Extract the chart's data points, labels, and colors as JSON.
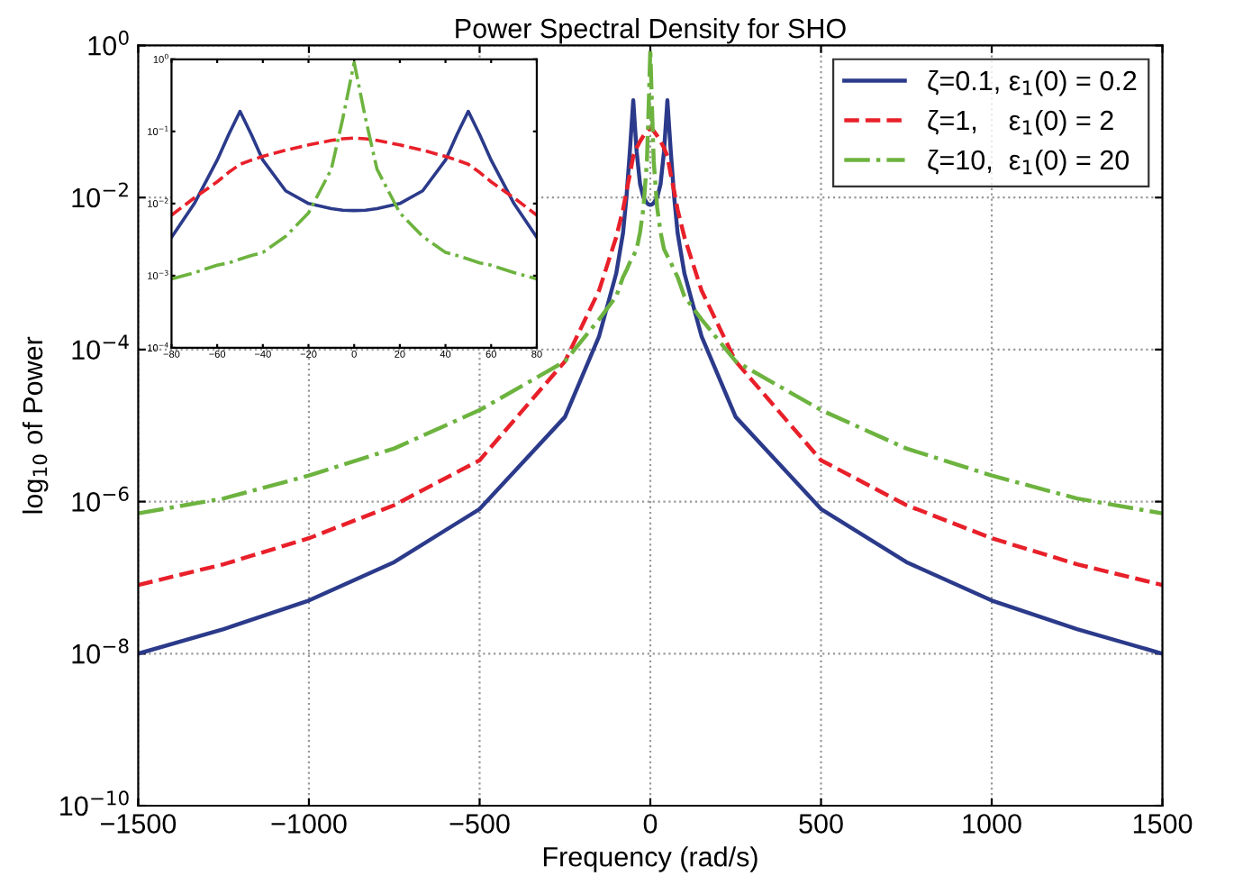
{
  "chart_data": [
    {
      "type": "line",
      "title": "Power Spectral Density for SHO",
      "xlabel": "Frequency (rad/s)",
      "ylabel": "log$_{10}$ of Power",
      "log": "y",
      "xlim": [
        -1500,
        1500
      ],
      "xticks": [
        {
          "value": -1500,
          "label": "−1500"
        },
        {
          "value": -1000,
          "label": "−1000"
        },
        {
          "value": -500,
          "label": "−500"
        },
        0,
        500,
        1000,
        1500
      ],
      "ylim": [
        1e-10,
        1
      ],
      "yticks": [
        {
          "value": 1e-10,
          "label": "10$^{−10}$"
        },
        {
          "value": 1e-08,
          "label": "10$^{−8}$"
        },
        {
          "value": 1e-06,
          "label": "10$^{−6}$"
        },
        {
          "value": 0.0001,
          "label": "10$^{−4}$"
        },
        {
          "value": 0.01,
          "label": "10$^{−2}$"
        },
        {
          "value": 1,
          "label": "10$^{0}$"
        }
      ],
      "grid": true,
      "legend": "top right",
      "x": [
        -1500,
        -1250,
        -1000,
        -750,
        -500,
        -250,
        -150,
        -100,
        -80,
        -70,
        -60,
        -50,
        -40,
        -30,
        -20,
        -10,
        -5,
        0,
        5,
        10,
        20,
        30,
        40,
        50,
        60,
        70,
        80,
        100,
        150,
        250,
        500,
        750,
        1000,
        1250,
        1500
      ],
      "series": [
        {
          "name": "ζ=0.1, ε$_{1}$(0) = 0.2",
          "color": "#2b3a8a",
          "line_style": "solid",
          "values": [
            1e-08,
            2.1e-08,
            5e-08,
            1.6e-07,
            8e-07,
            1.3e-05,
            0.00015,
            0.001,
            0.0034,
            0.01,
            0.04,
            0.19,
            0.04,
            0.015,
            0.01,
            0.0085,
            0.0081,
            0.008,
            0.0081,
            0.0085,
            0.01,
            0.015,
            0.04,
            0.19,
            0.04,
            0.01,
            0.0034,
            0.001,
            0.00015,
            1.3e-05,
            8e-07,
            1.6e-07,
            5e-08,
            2.1e-08,
            1e-08
          ]
        },
        {
          "name": "ζ=1,    ε$_{1}$(0) = 2",
          "color": "#e8202a",
          "line_style": "dashed",
          "values": [
            8e-08,
            1.5e-07,
            3.3e-07,
            9e-07,
            3.5e-06,
            7e-05,
            0.0006,
            0.003,
            0.0069,
            0.012,
            0.02,
            0.035,
            0.045,
            0.055,
            0.065,
            0.075,
            0.079,
            0.081,
            0.079,
            0.075,
            0.065,
            0.055,
            0.045,
            0.035,
            0.02,
            0.012,
            0.0069,
            0.003,
            0.0006,
            7e-05,
            3.5e-06,
            9e-07,
            3.3e-07,
            1.5e-07,
            8e-08
          ]
        },
        {
          "name": "ζ=10,  ε$_{1}$(0) = 20",
          "color": "#6db33f",
          "line_style": "dashdot",
          "values": [
            7e-07,
            1.1e-06,
            2.2e-06,
            5e-06,
            1.6e-05,
            7e-05,
            0.00025,
            0.0005,
            0.0009,
            0.0011,
            0.0014,
            0.0017,
            0.0021,
            0.0035,
            0.0074,
            0.03,
            0.15,
            0.9,
            0.15,
            0.03,
            0.0074,
            0.0035,
            0.0021,
            0.0017,
            0.0014,
            0.0011,
            0.0009,
            0.0005,
            0.00025,
            7e-05,
            1.6e-05,
            5e-06,
            2.2e-06,
            1.1e-06,
            7e-07
          ]
        }
      ]
    },
    {
      "type": "line",
      "log": "y",
      "xlim": [
        -80,
        80
      ],
      "xticks": [
        {
          "value": -80,
          "label": "−80"
        },
        {
          "value": -60,
          "label": "−60"
        },
        {
          "value": -40,
          "label": "−40"
        },
        {
          "value": -20,
          "label": "−20"
        },
        0,
        20,
        40,
        60,
        80
      ],
      "ylim": [
        0.0001,
        1
      ],
      "yticks": [
        {
          "value": 0.0001,
          "label": "10$^{−4}$"
        },
        {
          "value": 0.001,
          "label": "10$^{−3}$"
        },
        {
          "value": 0.01,
          "label": "10$^{−2}$"
        },
        {
          "value": 0.1,
          "label": "10$^{−1}$"
        },
        {
          "value": 1,
          "label": "10$^{0}$"
        }
      ],
      "grid": false,
      "x": [
        -80,
        -70,
        -60,
        -55,
        -50,
        -45,
        -40,
        -30,
        -20,
        -10,
        -5,
        0,
        5,
        10,
        20,
        30,
        40,
        45,
        50,
        55,
        60,
        70,
        80
      ],
      "series": [
        {
          "color": "#2b3a8a",
          "line_style": "solid",
          "values": [
            0.0034,
            0.01,
            0.04,
            0.09,
            0.19,
            0.09,
            0.04,
            0.015,
            0.01,
            0.0085,
            0.0081,
            0.008,
            0.0081,
            0.0085,
            0.01,
            0.015,
            0.04,
            0.09,
            0.19,
            0.09,
            0.04,
            0.01,
            0.0034
          ]
        },
        {
          "color": "#e8202a",
          "line_style": "dashed",
          "values": [
            0.0069,
            0.012,
            0.02,
            0.027,
            0.035,
            0.04,
            0.045,
            0.055,
            0.065,
            0.075,
            0.079,
            0.081,
            0.079,
            0.075,
            0.065,
            0.055,
            0.045,
            0.04,
            0.035,
            0.027,
            0.02,
            0.012,
            0.0069
          ]
        },
        {
          "color": "#6db33f",
          "line_style": "dashdot",
          "values": [
            0.0009,
            0.0011,
            0.0014,
            0.0015,
            0.0017,
            0.0019,
            0.0021,
            0.0035,
            0.0074,
            0.03,
            0.15,
            0.9,
            0.15,
            0.03,
            0.0074,
            0.0035,
            0.0021,
            0.0019,
            0.0017,
            0.0015,
            0.0014,
            0.0011,
            0.0009
          ]
        }
      ]
    }
  ]
}
